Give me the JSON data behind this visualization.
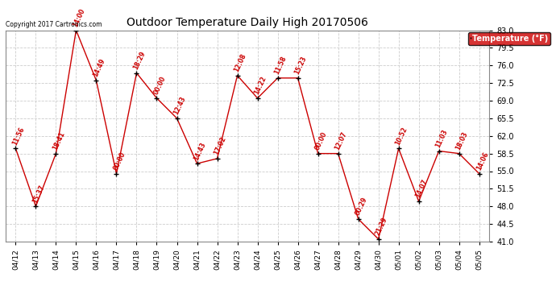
{
  "title": "Outdoor Temperature Daily High 20170506",
  "copyright_text": "Copyright 2017 Cartronics.com",
  "legend_label": "Temperature (°F)",
  "dates": [
    "04/12",
    "04/13",
    "04/14",
    "04/15",
    "04/16",
    "04/17",
    "04/18",
    "04/19",
    "04/20",
    "04/21",
    "04/22",
    "04/23",
    "04/24",
    "04/25",
    "04/26",
    "04/27",
    "04/28",
    "04/29",
    "04/30",
    "05/01",
    "05/02",
    "05/03",
    "05/04",
    "05/05"
  ],
  "values": [
    59.5,
    48.0,
    58.5,
    83.0,
    73.0,
    54.5,
    74.5,
    69.5,
    65.5,
    56.5,
    57.5,
    74.0,
    69.5,
    73.5,
    73.5,
    58.5,
    58.5,
    45.5,
    41.5,
    59.5,
    49.0,
    59.0,
    58.5,
    54.5
  ],
  "time_labels": [
    "11:56",
    "15:37",
    "18:41",
    "14:00",
    "14:49",
    "00:00",
    "18:29",
    "00:00",
    "12:43",
    "14:43",
    "17:02",
    "12:08",
    "14:22",
    "11:58",
    "15:23",
    "00:00",
    "12:07",
    "00:29",
    "21:29",
    "10:52",
    "14:07",
    "11:03",
    "18:03",
    "14:06"
  ],
  "line_color": "#cc0000",
  "marker_color": "#000000",
  "label_color": "#cc0000",
  "legend_bg": "#cc0000",
  "legend_text_color": "#ffffff",
  "background_color": "#ffffff",
  "grid_color": "#cccccc",
  "title_color": "#000000",
  "ylim": [
    41.0,
    83.0
  ],
  "yticks": [
    41.0,
    44.5,
    48.0,
    51.5,
    55.0,
    58.5,
    62.0,
    65.5,
    69.0,
    72.5,
    76.0,
    79.5,
    83.0
  ]
}
